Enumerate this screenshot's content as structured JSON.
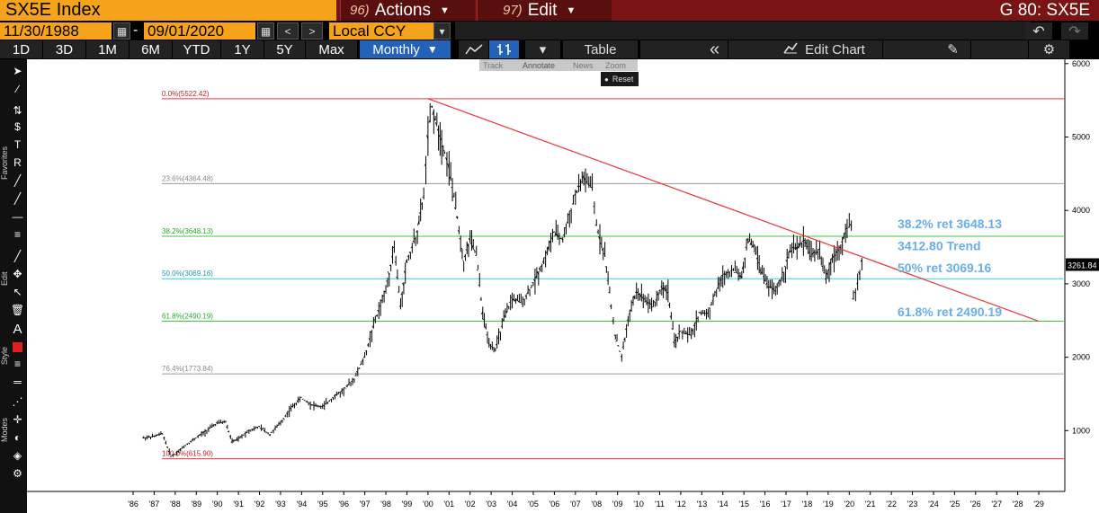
{
  "header": {
    "ticker": "SX5E Index",
    "actions_num": "96)",
    "actions_label": "Actions",
    "edit_num": "97)",
    "edit_label": "Edit",
    "screen_title": "G 80: SX5E"
  },
  "toolbar": {
    "start_date": "11/30/1988",
    "date_sep": "-",
    "end_date": "09/01/2020",
    "prev_label": "<",
    "next_label": ">",
    "currency": "Local CCY",
    "ranges": [
      "1D",
      "3D",
      "1M",
      "6M",
      "YTD",
      "1Y",
      "5Y",
      "Max"
    ],
    "period": "Monthly",
    "table_label": "Table",
    "collapse_label": "«",
    "edit_chart_label": "Edit Chart"
  },
  "popup": {
    "track": "Track",
    "annotate": "Annotate",
    "news": "News",
    "zoom": "Zoom",
    "reset": "Reset"
  },
  "sidebar": {
    "favorites": "Favorites",
    "edit": "Edit",
    "style": "Style",
    "modes": "Modes"
  },
  "colors": {
    "red_line": "#e8343a",
    "green_line": "#3ec83e",
    "cyan_line": "#2ad2e8",
    "gray_line": "#9a9a9a",
    "annotation_text": "#6aaee8",
    "price_bars": "#000000"
  },
  "chart_data": {
    "type": "ohlc-bar",
    "title": "",
    "xlabel": "",
    "ylabel": "",
    "x_ticks": [
      "'86",
      "'87",
      "'88",
      "'89",
      "'90",
      "'91",
      "'92",
      "'93",
      "'94",
      "'95",
      "'96",
      "'97",
      "'98",
      "'99",
      "'00",
      "'01",
      "'02",
      "'03",
      "'04",
      "'05",
      "'06",
      "'07",
      "'08",
      "'09",
      "'10",
      "'11",
      "'12",
      "'13",
      "'14",
      "'15",
      "'16",
      "'17",
      "'18",
      "'19",
      "'20",
      "'21",
      "'22",
      "'23",
      "'24",
      "'25",
      "'26",
      "'27",
      "'28",
      "'29"
    ],
    "y_ticks": [
      "1000",
      "2000",
      "3000",
      "4000",
      "5000",
      "6000"
    ],
    "ylim": [
      0,
      6100
    ],
    "last_price": "3261.84",
    "fib_levels": [
      {
        "label": "0.0%(5522.42)",
        "value": 5522.42,
        "kind": "red"
      },
      {
        "label": "23.6%(4364.48)",
        "value": 4364.48,
        "kind": "gray"
      },
      {
        "label": "38.2%(3648.13)",
        "value": 3648.13,
        "kind": "green"
      },
      {
        "label": "50.0%(3069.16)",
        "value": 3069.16,
        "kind": "cyan"
      },
      {
        "label": "61.8%(2490.19)",
        "value": 2490.19,
        "kind": "green"
      },
      {
        "label": "76.4%(1773.84)",
        "value": 1773.84,
        "kind": "gray"
      },
      {
        "label": "100.0%(615.90)",
        "value": 615.9,
        "kind": "red"
      }
    ],
    "annotations": [
      {
        "text": "38.2% ret 3648.13",
        "value": 3820
      },
      {
        "text": "3412.80 Trend",
        "value": 3520
      },
      {
        "text": "50% ret 3069.16",
        "value": 3220
      },
      {
        "text": "61.8% ret 2490.19",
        "value": 2620
      }
    ],
    "trendline": {
      "from": {
        "x": 2000.0,
        "y": 5522.42
      },
      "to": {
        "x": 2029.0,
        "y": 2490.19
      }
    },
    "series": [
      {
        "values": [
          [
            1986.5,
            900
          ],
          [
            1987.0,
            920
          ],
          [
            1987.4,
            960
          ],
          [
            1987.8,
            650
          ],
          [
            1988.0,
            680
          ],
          [
            1988.5,
            800
          ],
          [
            1989.0,
            900
          ],
          [
            1989.5,
            1000
          ],
          [
            1990.0,
            1100
          ],
          [
            1990.4,
            1120
          ],
          [
            1990.7,
            850
          ],
          [
            1991.0,
            880
          ],
          [
            1991.5,
            1000
          ],
          [
            1992.0,
            1050
          ],
          [
            1992.5,
            950
          ],
          [
            1993.0,
            1100
          ],
          [
            1993.5,
            1300
          ],
          [
            1994.0,
            1450
          ],
          [
            1994.5,
            1350
          ],
          [
            1995.0,
            1320
          ],
          [
            1995.5,
            1450
          ],
          [
            1996.0,
            1550
          ],
          [
            1996.5,
            1700
          ],
          [
            1997.0,
            2000
          ],
          [
            1997.5,
            2500
          ],
          [
            1998.0,
            2900
          ],
          [
            1998.4,
            3500
          ],
          [
            1998.7,
            2700
          ],
          [
            1999.0,
            3300
          ],
          [
            1999.5,
            3700
          ],
          [
            1999.8,
            4200
          ],
          [
            2000.0,
            5000
          ],
          [
            2000.2,
            5400
          ],
          [
            2000.5,
            5100
          ],
          [
            2000.8,
            4800
          ],
          [
            2001.0,
            4600
          ],
          [
            2001.4,
            3900
          ],
          [
            2001.7,
            3300
          ],
          [
            2002.0,
            3600
          ],
          [
            2002.3,
            3400
          ],
          [
            2002.6,
            2600
          ],
          [
            2002.9,
            2200
          ],
          [
            2003.2,
            2100
          ],
          [
            2003.6,
            2500
          ],
          [
            2004.0,
            2800
          ],
          [
            2004.5,
            2750
          ],
          [
            2005.0,
            3000
          ],
          [
            2005.5,
            3300
          ],
          [
            2006.0,
            3700
          ],
          [
            2006.4,
            3600
          ],
          [
            2006.8,
            4000
          ],
          [
            2007.0,
            4200
          ],
          [
            2007.4,
            4450
          ],
          [
            2007.8,
            4300
          ],
          [
            2008.0,
            3800
          ],
          [
            2008.4,
            3400
          ],
          [
            2008.7,
            2700
          ],
          [
            2008.9,
            2300
          ],
          [
            2009.2,
            2000
          ],
          [
            2009.5,
            2500
          ],
          [
            2009.9,
            2900
          ],
          [
            2010.3,
            2800
          ],
          [
            2010.7,
            2700
          ],
          [
            2011.1,
            2950
          ],
          [
            2011.4,
            2900
          ],
          [
            2011.7,
            2200
          ],
          [
            2012.0,
            2350
          ],
          [
            2012.5,
            2300
          ],
          [
            2012.9,
            2600
          ],
          [
            2013.3,
            2600
          ],
          [
            2013.7,
            2900
          ],
          [
            2014.0,
            3100
          ],
          [
            2014.5,
            3200
          ],
          [
            2014.9,
            3100
          ],
          [
            2015.2,
            3600
          ],
          [
            2015.5,
            3500
          ],
          [
            2015.8,
            3200
          ],
          [
            2016.1,
            3000
          ],
          [
            2016.5,
            2900
          ],
          [
            2016.9,
            3150
          ],
          [
            2017.2,
            3450
          ],
          [
            2017.6,
            3500
          ],
          [
            2017.9,
            3600
          ],
          [
            2018.2,
            3400
          ],
          [
            2018.6,
            3450
          ],
          [
            2018.9,
            3050
          ],
          [
            2019.2,
            3350
          ],
          [
            2019.6,
            3500
          ],
          [
            2019.9,
            3750
          ],
          [
            2020.1,
            3800
          ],
          [
            2020.2,
            2800
          ],
          [
            2020.4,
            3000
          ],
          [
            2020.6,
            3300
          ],
          [
            2020.7,
            3261.84
          ]
        ]
      }
    ]
  }
}
